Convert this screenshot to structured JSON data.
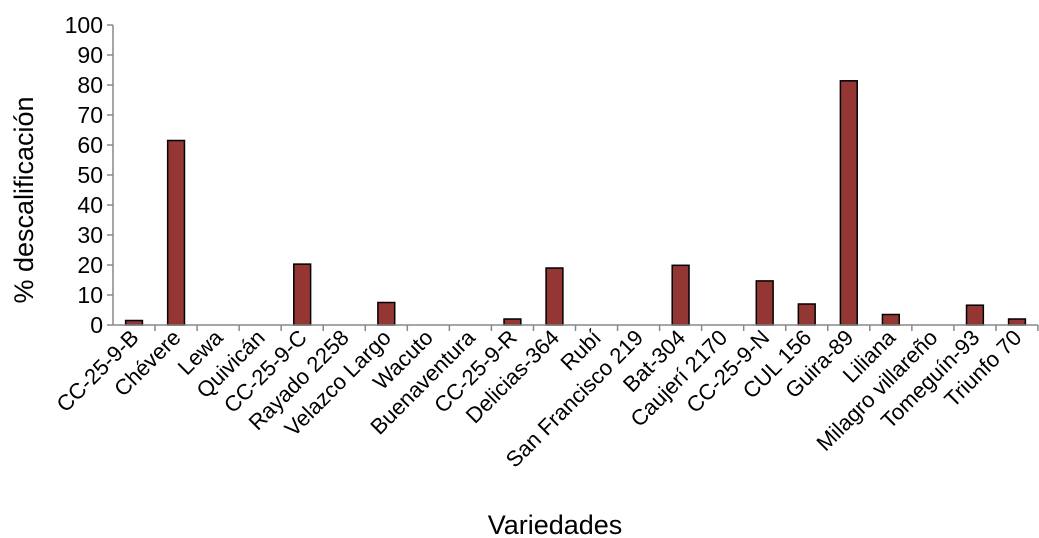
{
  "chart_data": {
    "type": "bar",
    "title": "",
    "xlabel": "Variedades",
    "ylabel": "% descalificación",
    "ylim": [
      0,
      100
    ],
    "yticks": [
      0,
      10,
      20,
      30,
      40,
      50,
      60,
      70,
      80,
      90,
      100
    ],
    "grid": false,
    "legend": "none",
    "bar_color": "#943634",
    "categories": [
      "CC-25-9-B",
      "Chévere",
      "Lewa",
      "Quivicán",
      "CC-25-9-C",
      "Rayado 2258",
      "Velazco Largo",
      "Wacuto",
      "Buenaventura",
      "CC-25-9-R",
      "Delicias-364",
      "Rubí",
      "San Francisco 219",
      "Bat-304",
      "Caujerí 2170",
      "CC-25-9-N",
      "CUL 156",
      "Guira-89",
      "Liliana",
      "Milagro villareño",
      "Tomeguín-93",
      "Triunfo 70"
    ],
    "values": [
      1.5,
      61.5,
      0,
      0,
      20.3,
      0,
      7.5,
      0,
      0,
      2,
      19,
      0,
      0,
      19.9,
      0,
      14.7,
      7,
      81.4,
      3.5,
      0,
      6.6,
      2
    ]
  }
}
